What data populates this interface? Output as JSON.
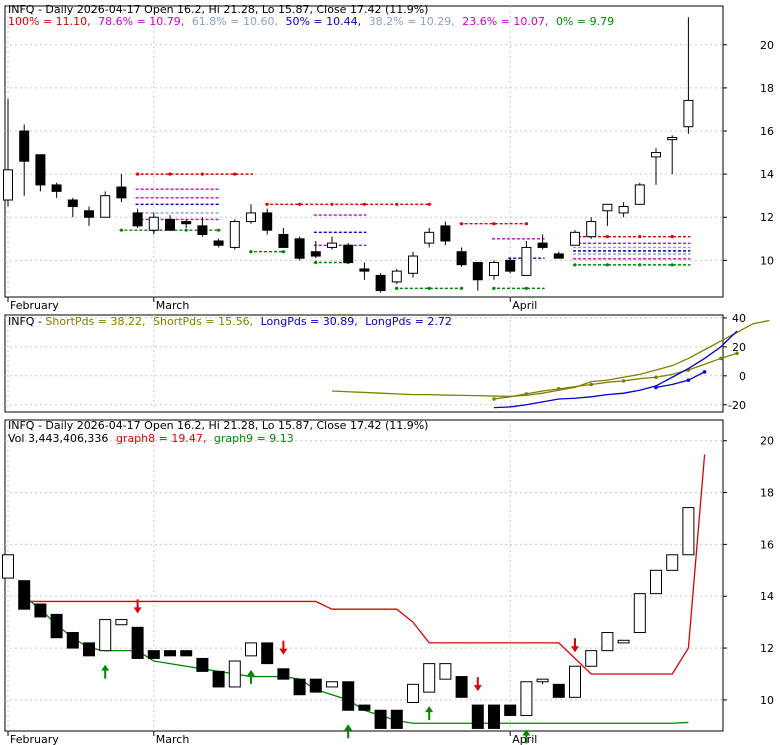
{
  "colors": {
    "up_candle": "#ffffff",
    "down_candle": "#000000",
    "grid": "#c8c8c8",
    "frame": "#000000",
    "fib_100": "#dd0000",
    "fib_786": "#cc00cc",
    "fib_618": "#8aa0c8",
    "fib_50": "#0000cc",
    "fib_382": "#8aa0c8",
    "fib_236": "#cc00cc",
    "fib_0": "#008800",
    "shortpds": "#808000",
    "longpds": "#0000cc",
    "graph8": "#dd0000",
    "graph9": "#008800",
    "buy_arrow": "#008800",
    "sell_arrow": "#dd0000"
  },
  "panel1": {
    "header_title": "INFQ - Daily 2026-04-17 Open 16.2, Hi 21.28, Lo 15.87, Close 17.42 (11.9%)",
    "fib_labels": [
      {
        "text": "100% = 11.10,",
        "color": "#dd0000"
      },
      {
        "text": "78.6% = 10.79,",
        "color": "#cc00cc"
      },
      {
        "text": "61.8% = 10.60,",
        "color": "#8aa0c8"
      },
      {
        "text": "50% = 10.44,",
        "color": "#0000cc"
      },
      {
        "text": "38.2% = 10.29,",
        "color": "#8aa0c8"
      },
      {
        "text": "23.6% = 10.07,",
        "color": "#cc00cc"
      },
      {
        "text": "0% = 9.79",
        "color": "#008800"
      }
    ],
    "y_ticks": [
      "10",
      "12",
      "14",
      "16",
      "18",
      "20"
    ],
    "x_labels": [
      "February",
      "March",
      "April"
    ]
  },
  "panel2": {
    "header_prefix": "INFQ - ",
    "legend": [
      {
        "text": "ShortPds = 38.22,",
        "color": "#808000"
      },
      {
        "text": "ShortPds = 15.56,",
        "color": "#808000"
      },
      {
        "text": "LongPds = 30.89,",
        "color": "#0000cc"
      },
      {
        "text": "LongPds = 2.72",
        "color": "#0000cc"
      }
    ],
    "y_ticks": [
      "40",
      "20",
      "0",
      "-20"
    ]
  },
  "panel3": {
    "header_title": "INFQ - Daily 2026-04-17 Open 16.2, Hi 21.28, Lo 15.87, Close 17.42 (11.9%)",
    "vol_text": "Vol 3,443,406,336",
    "graph8_text": "graph8 = 19.47,",
    "graph9_text": "graph9 = 9.13",
    "y_ticks": [
      "10",
      "12",
      "14",
      "16",
      "18",
      "20"
    ],
    "x_labels": [
      "February",
      "March",
      "April"
    ]
  },
  "chart_data": [
    {
      "type": "candlestick",
      "title": "INFQ - Daily 2026-04-17 Open 16.2, Hi 21.28, Lo 15.87, Close 17.42 (11.9%)",
      "ylim": [
        8.3,
        21.8
      ],
      "x_labels": [
        "February",
        "March",
        "April"
      ],
      "candles": [
        {
          "o": 12.8,
          "h": 17.5,
          "l": 12.5,
          "c": 14.2
        },
        {
          "o": 16.0,
          "h": 16.3,
          "l": 13.0,
          "c": 14.6
        },
        {
          "o": 14.9,
          "h": 14.9,
          "l": 13.2,
          "c": 13.5
        },
        {
          "o": 13.5,
          "h": 13.6,
          "l": 12.9,
          "c": 13.2
        },
        {
          "o": 12.8,
          "h": 12.9,
          "l": 12.0,
          "c": 12.5
        },
        {
          "o": 12.3,
          "h": 12.5,
          "l": 11.6,
          "c": 12.0
        },
        {
          "o": 12.0,
          "h": 13.2,
          "l": 12.0,
          "c": 13.0
        },
        {
          "o": 13.4,
          "h": 14.0,
          "l": 12.7,
          "c": 12.9
        },
        {
          "o": 12.2,
          "h": 12.4,
          "l": 11.5,
          "c": 11.6
        },
        {
          "o": 11.4,
          "h": 12.2,
          "l": 11.2,
          "c": 12.0
        },
        {
          "o": 11.9,
          "h": 12.1,
          "l": 11.5,
          "c": 11.4
        },
        {
          "o": 11.8,
          "h": 11.9,
          "l": 11.5,
          "c": 11.7
        },
        {
          "o": 11.6,
          "h": 12.0,
          "l": 11.1,
          "c": 11.2
        },
        {
          "o": 10.9,
          "h": 11.0,
          "l": 10.6,
          "c": 10.7
        },
        {
          "o": 10.6,
          "h": 11.9,
          "l": 10.5,
          "c": 11.8
        },
        {
          "o": 11.8,
          "h": 12.6,
          "l": 11.7,
          "c": 12.2
        },
        {
          "o": 12.2,
          "h": 12.4,
          "l": 11.2,
          "c": 11.4
        },
        {
          "o": 11.2,
          "h": 11.5,
          "l": 10.6,
          "c": 10.6
        },
        {
          "o": 11.0,
          "h": 11.1,
          "l": 10.0,
          "c": 10.1
        },
        {
          "o": 10.4,
          "h": 10.9,
          "l": 10.1,
          "c": 10.2
        },
        {
          "o": 10.6,
          "h": 11.1,
          "l": 10.5,
          "c": 10.8
        },
        {
          "o": 10.7,
          "h": 10.8,
          "l": 9.9,
          "c": 9.9
        },
        {
          "o": 9.6,
          "h": 9.9,
          "l": 9.1,
          "c": 9.5
        },
        {
          "o": 9.3,
          "h": 9.4,
          "l": 8.5,
          "c": 8.6
        },
        {
          "o": 9.0,
          "h": 9.6,
          "l": 8.9,
          "c": 9.5
        },
        {
          "o": 9.4,
          "h": 10.4,
          "l": 9.2,
          "c": 10.2
        },
        {
          "o": 10.8,
          "h": 11.5,
          "l": 10.6,
          "c": 11.3
        },
        {
          "o": 11.6,
          "h": 11.8,
          "l": 10.7,
          "c": 10.9
        },
        {
          "o": 10.4,
          "h": 10.6,
          "l": 9.7,
          "c": 9.8
        },
        {
          "o": 9.9,
          "h": 9.9,
          "l": 8.6,
          "c": 9.1
        },
        {
          "o": 9.3,
          "h": 10.0,
          "l": 9.1,
          "c": 9.9
        },
        {
          "o": 10.0,
          "h": 10.1,
          "l": 9.4,
          "c": 9.5
        },
        {
          "o": 9.3,
          "h": 10.9,
          "l": 9.3,
          "c": 10.6
        },
        {
          "o": 10.8,
          "h": 11.2,
          "l": 10.5,
          "c": 10.6
        },
        {
          "o": 10.3,
          "h": 10.4,
          "l": 10.1,
          "c": 10.1
        },
        {
          "o": 10.7,
          "h": 11.4,
          "l": 10.7,
          "c": 11.3
        },
        {
          "o": 11.1,
          "h": 12.0,
          "l": 11.0,
          "c": 11.8
        },
        {
          "o": 12.3,
          "h": 12.6,
          "l": 11.6,
          "c": 12.6
        },
        {
          "o": 12.2,
          "h": 12.7,
          "l": 12.0,
          "c": 12.5
        },
        {
          "o": 12.6,
          "h": 13.6,
          "l": 12.6,
          "c": 13.5
        },
        {
          "o": 14.8,
          "h": 15.2,
          "l": 13.5,
          "c": 15.0
        },
        {
          "o": 15.6,
          "h": 15.8,
          "l": 14.0,
          "c": 15.7
        },
        {
          "o": 16.2,
          "h": 21.28,
          "l": 15.87,
          "c": 17.42
        }
      ],
      "dashed_levels": [
        {
          "from": 8,
          "to": 15,
          "value": 14.0,
          "color": "#dd0000"
        },
        {
          "from": 8,
          "to": 13,
          "value": 13.3,
          "color": "#cc00cc"
        },
        {
          "from": 8,
          "to": 13,
          "value": 12.9,
          "color": "#cc00cc"
        },
        {
          "from": 8,
          "to": 13,
          "value": 12.6,
          "color": "#0000cc"
        },
        {
          "from": 8,
          "to": 13,
          "value": 12.2,
          "color": "#8aa0c8"
        },
        {
          "from": 8,
          "to": 13,
          "value": 11.9,
          "color": "#cc00cc"
        },
        {
          "from": 7,
          "to": 13,
          "value": 11.4,
          "color": "#008800"
        },
        {
          "from": 16,
          "to": 26,
          "value": 12.6,
          "color": "#dd0000"
        },
        {
          "from": 19,
          "to": 22,
          "value": 12.1,
          "color": "#cc00cc"
        },
        {
          "from": 19,
          "to": 22,
          "value": 11.3,
          "color": "#0000cc"
        },
        {
          "from": 19,
          "to": 22,
          "value": 10.7,
          "color": "#cc00cc"
        },
        {
          "from": 15,
          "to": 17,
          "value": 10.4,
          "color": "#008800"
        },
        {
          "from": 19,
          "to": 21,
          "value": 9.9,
          "color": "#008800"
        },
        {
          "from": 24,
          "to": 28,
          "value": 8.7,
          "color": "#008800"
        },
        {
          "from": 28,
          "to": 32,
          "value": 11.7,
          "color": "#dd0000"
        },
        {
          "from": 30,
          "to": 33,
          "value": 11.0,
          "color": "#cc00cc"
        },
        {
          "from": 31,
          "to": 33,
          "value": 10.1,
          "color": "#0000cc"
        },
        {
          "from": 30,
          "to": 33,
          "value": 8.7,
          "color": "#008800"
        },
        {
          "from": 35,
          "to": 42,
          "value": 11.1,
          "color": "#dd0000"
        },
        {
          "from": 35,
          "to": 42,
          "value": 10.79,
          "color": "#cc00cc"
        },
        {
          "from": 35,
          "to": 42,
          "value": 10.6,
          "color": "#8aa0c8"
        },
        {
          "from": 35,
          "to": 42,
          "value": 10.44,
          "color": "#0000cc"
        },
        {
          "from": 35,
          "to": 42,
          "value": 10.29,
          "color": "#8aa0c8"
        },
        {
          "from": 35,
          "to": 42,
          "value": 10.07,
          "color": "#cc00cc"
        },
        {
          "from": 35,
          "to": 42,
          "value": 9.79,
          "color": "#008800"
        }
      ]
    },
    {
      "type": "line",
      "ylim": [
        -25,
        42
      ],
      "x_labels": [
        "February",
        "March",
        "April"
      ],
      "series": [
        {
          "name": "ShortPds",
          "color": "#808000",
          "start": 20,
          "values": [
            -10.5,
            -11,
            -11.5,
            -12,
            -12.5,
            -13,
            -13,
            -13.3,
            -13.5,
            -13.7,
            -14,
            -14.2,
            -13.5,
            -12,
            -10,
            -8,
            -4,
            -3,
            -1,
            1,
            4,
            7,
            12,
            18,
            24,
            30,
            36,
            38.22
          ]
        },
        {
          "name": "ShortPds",
          "color": "#808000",
          "start": 30,
          "values": [
            -16,
            -14.5,
            -12.5,
            -10.5,
            -9,
            -7.5,
            -6,
            -4.5,
            -3.5,
            -2,
            -1,
            1,
            4,
            8,
            12,
            15.56
          ]
        },
        {
          "name": "LongPds",
          "color": "#0000cc",
          "start": 30,
          "values": [
            -22,
            -21.5,
            -20,
            -18,
            -16,
            -15.5,
            -14.5,
            -13,
            -12,
            -10,
            -7,
            -1,
            5,
            12,
            20,
            30.89
          ]
        },
        {
          "name": "LongPds",
          "color": "#0000cc",
          "start": 40,
          "values": [
            -8,
            -6,
            -3,
            2.72
          ]
        }
      ]
    },
    {
      "type": "candlestick",
      "title": "INFQ - Daily 2026-04-17 Open 16.2, Hi 21.28, Lo 15.87, Close 17.42 (11.9%)",
      "ylim": [
        8.8,
        20.8
      ],
      "x_labels": [
        "February",
        "March",
        "April"
      ],
      "candles": [
        {
          "o": 14.7,
          "h": 15.6,
          "l": 14.7,
          "c": 15.6
        },
        {
          "o": 14.6,
          "h": 14.6,
          "l": 13.5,
          "c": 13.5
        },
        {
          "o": 13.7,
          "h": 13.7,
          "l": 13.2,
          "c": 13.2
        },
        {
          "o": 13.3,
          "h": 13.3,
          "l": 12.4,
          "c": 12.4
        },
        {
          "o": 12.6,
          "h": 12.6,
          "l": 12.0,
          "c": 12.0
        },
        {
          "o": 12.2,
          "h": 12.2,
          "l": 11.7,
          "c": 11.7
        },
        {
          "o": 11.9,
          "h": 13.1,
          "l": 11.9,
          "c": 13.1
        },
        {
          "o": 12.9,
          "h": 13.1,
          "l": 12.9,
          "c": 13.1
        },
        {
          "o": 12.8,
          "h": 12.8,
          "l": 11.6,
          "c": 11.6
        },
        {
          "o": 11.9,
          "h": 11.9,
          "l": 11.6,
          "c": 11.6
        },
        {
          "o": 11.9,
          "h": 11.9,
          "l": 11.7,
          "c": 11.7
        },
        {
          "o": 11.9,
          "h": 11.9,
          "l": 11.7,
          "c": 11.7
        },
        {
          "o": 11.6,
          "h": 11.6,
          "l": 11.1,
          "c": 11.1
        },
        {
          "o": 11.1,
          "h": 11.1,
          "l": 10.5,
          "c": 10.5
        },
        {
          "o": 10.5,
          "h": 11.5,
          "l": 10.5,
          "c": 11.5
        },
        {
          "o": 11.7,
          "h": 12.2,
          "l": 11.7,
          "c": 12.2
        },
        {
          "o": 12.2,
          "h": 12.2,
          "l": 11.4,
          "c": 11.4
        },
        {
          "o": 11.2,
          "h": 11.2,
          "l": 10.8,
          "c": 10.8
        },
        {
          "o": 10.8,
          "h": 10.8,
          "l": 10.2,
          "c": 10.2
        },
        {
          "o": 10.8,
          "h": 10.8,
          "l": 10.3,
          "c": 10.3
        },
        {
          "o": 10.5,
          "h": 10.7,
          "l": 10.5,
          "c": 10.7
        },
        {
          "o": 10.7,
          "h": 10.7,
          "l": 9.6,
          "c": 9.6
        },
        {
          "o": 9.8,
          "h": 9.8,
          "l": 9.6,
          "c": 9.6
        },
        {
          "o": 9.6,
          "h": 9.6,
          "l": 8.9,
          "c": 8.9
        },
        {
          "o": 9.6,
          "h": 9.6,
          "l": 8.9,
          "c": 8.9
        },
        {
          "o": 9.9,
          "h": 10.6,
          "l": 9.9,
          "c": 10.6
        },
        {
          "o": 10.3,
          "h": 11.4,
          "l": 10.3,
          "c": 11.4
        },
        {
          "o": 10.8,
          "h": 11.4,
          "l": 10.8,
          "c": 11.4
        },
        {
          "o": 10.9,
          "h": 10.9,
          "l": 10.1,
          "c": 10.1
        },
        {
          "o": 9.8,
          "h": 9.8,
          "l": 8.9,
          "c": 8.9
        },
        {
          "o": 9.8,
          "h": 9.8,
          "l": 8.9,
          "c": 8.9
        },
        {
          "o": 9.8,
          "h": 9.8,
          "l": 9.4,
          "c": 9.4
        },
        {
          "o": 9.4,
          "h": 10.7,
          "l": 9.4,
          "c": 10.7
        },
        {
          "o": 10.7,
          "h": 10.8,
          "l": 10.6,
          "c": 10.8
        },
        {
          "o": 10.6,
          "h": 10.6,
          "l": 10.1,
          "c": 10.1
        },
        {
          "o": 10.1,
          "h": 11.3,
          "l": 10.1,
          "c": 11.3
        },
        {
          "o": 11.3,
          "h": 11.9,
          "l": 11.3,
          "c": 11.9
        },
        {
          "o": 11.9,
          "h": 12.6,
          "l": 11.9,
          "c": 12.6
        },
        {
          "o": 12.2,
          "h": 12.3,
          "l": 12.2,
          "c": 12.3
        },
        {
          "o": 12.6,
          "h": 14.1,
          "l": 12.6,
          "c": 14.1
        },
        {
          "o": 14.1,
          "h": 15.0,
          "l": 14.1,
          "c": 15.0
        },
        {
          "o": 15.0,
          "h": 15.6,
          "l": 15.0,
          "c": 15.6
        },
        {
          "o": 15.6,
          "h": 17.42,
          "l": 15.6,
          "c": 17.42
        }
      ],
      "series": [
        {
          "name": "graph8",
          "color": "#dd0000",
          "start": 1,
          "values": [
            13.8,
            13.8,
            13.8,
            13.8,
            13.8,
            13.8,
            13.8,
            13.8,
            13.8,
            13.8,
            13.8,
            13.8,
            13.8,
            13.8,
            13.8,
            13.8,
            13.8,
            13.8,
            13.8,
            13.5,
            13.5,
            13.5,
            13.5,
            13.5,
            13.0,
            12.2,
            12.2,
            12.2,
            12.2,
            12.2,
            12.2,
            12.2,
            12.2,
            12.2,
            11.6,
            11.0,
            11.0,
            11.0,
            11.0,
            11.0,
            11.0,
            12.0,
            19.47
          ]
        },
        {
          "name": "graph9",
          "color": "#008800",
          "start": 1,
          "values": [
            14.0,
            13.5,
            12.9,
            12.4,
            12.0,
            11.9,
            11.9,
            11.9,
            11.5,
            11.4,
            11.3,
            11.2,
            11.1,
            11.0,
            10.9,
            10.9,
            10.9,
            10.8,
            10.4,
            10.2,
            10.0,
            9.6,
            9.4,
            9.2,
            9.1,
            9.1,
            9.1,
            9.1,
            9.1,
            9.1,
            9.1,
            9.1,
            9.1,
            9.1,
            9.1,
            9.1,
            9.1,
            9.1,
            9.1,
            9.1,
            9.1,
            9.13
          ]
        }
      ],
      "buy_arrows": [
        6,
        15,
        21,
        26,
        32
      ],
      "sell_arrows": [
        8,
        17,
        29,
        35
      ]
    }
  ]
}
